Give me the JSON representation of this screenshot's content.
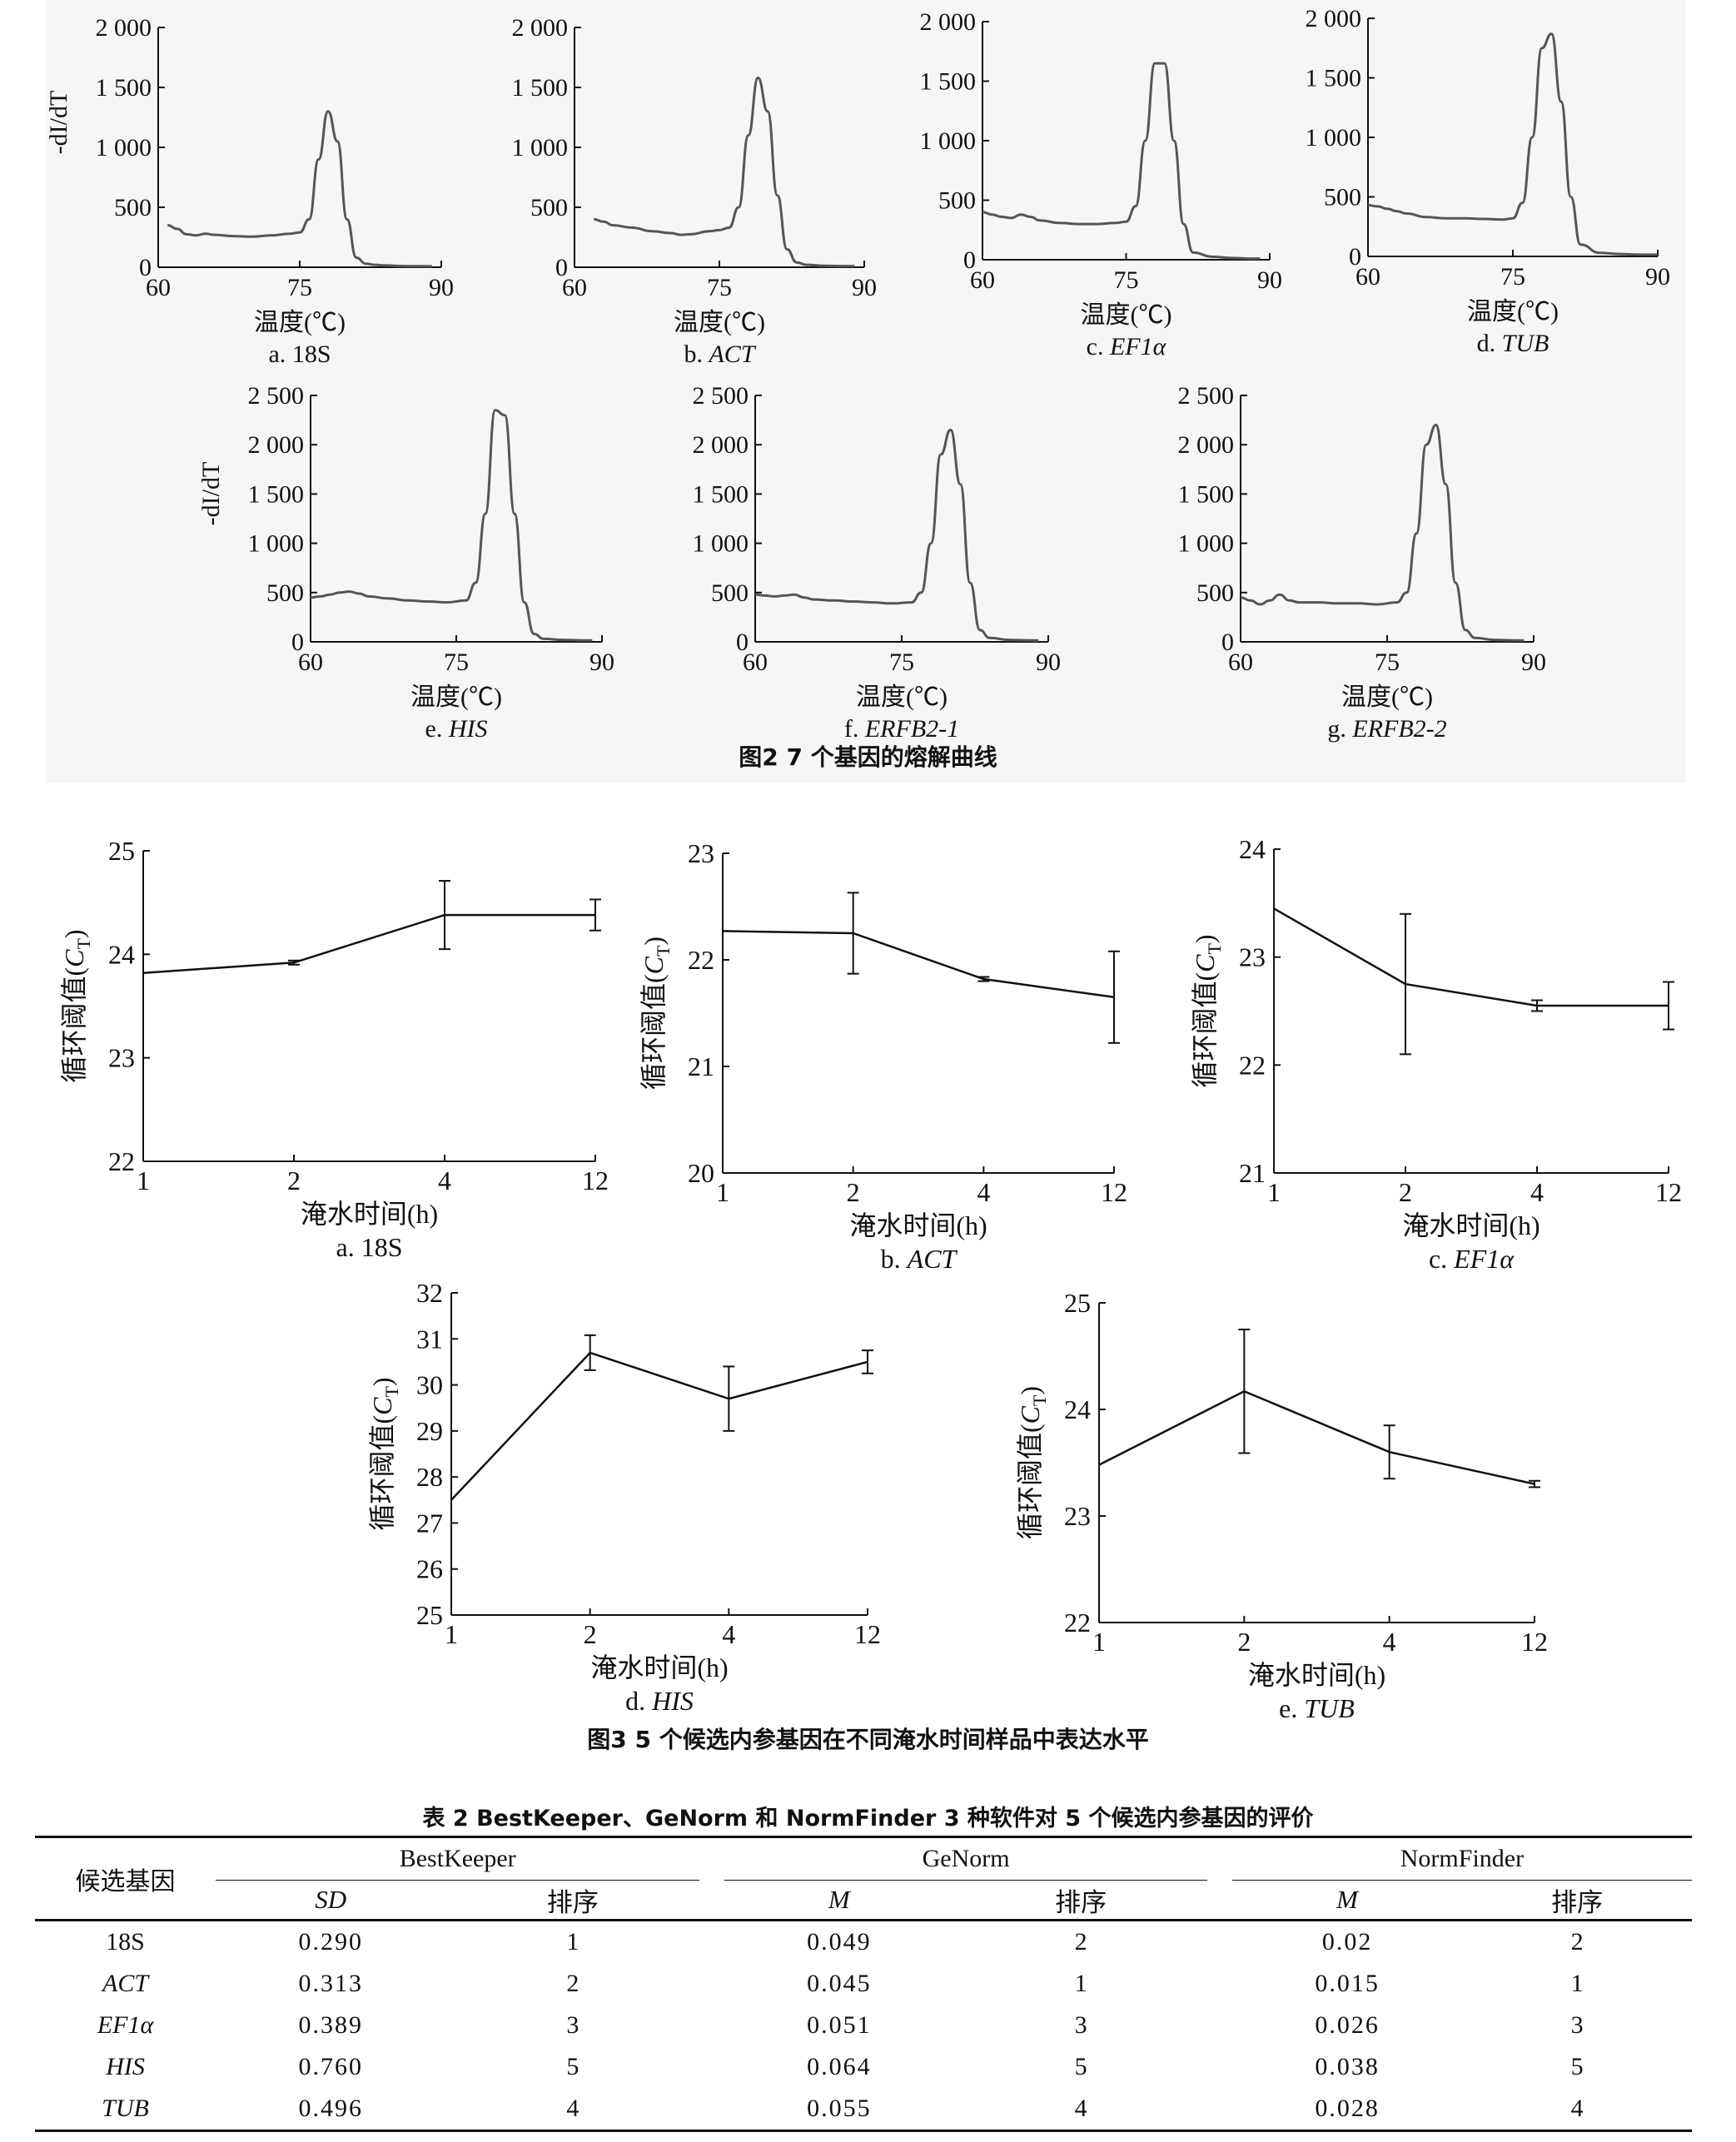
{
  "figure2": {
    "caption": "图2   7 个基因的熔解曲线",
    "ylabel": "-dI/dT",
    "xlabel": "温度(℃)"
  },
  "figure3": {
    "caption": "图3     5 个候选内参基因在不同淹水时间样品中表达水平",
    "ylabel": "循环阈值(CT)",
    "xlabel": "淹水时间(h)"
  },
  "table2": {
    "title": "表 2   BestKeeper、GeNorm 和 NormFinder 3 种软件对 5 个候选内参基因的评价",
    "col_gene": "候选基因",
    "groups": [
      "BestKeeper",
      "GeNorm",
      "NormFinder"
    ],
    "sub_sd": "SD",
    "sub_m": "M",
    "sub_rank": "排序",
    "rows": [
      {
        "gene": "18S",
        "bk_sd": "0.290",
        "bk_rank": "1",
        "gn_m": "0.049",
        "gn_rank": "2",
        "nf_m": "0.02",
        "nf_rank": "2"
      },
      {
        "gene": "ACT",
        "bk_sd": "0.313",
        "bk_rank": "2",
        "gn_m": "0.045",
        "gn_rank": "1",
        "nf_m": "0.015",
        "nf_rank": "1"
      },
      {
        "gene": "EF1α",
        "bk_sd": "0.389",
        "bk_rank": "3",
        "gn_m": "0.051",
        "gn_rank": "3",
        "nf_m": "0.026",
        "nf_rank": "3"
      },
      {
        "gene": "HIS",
        "bk_sd": "0.760",
        "bk_rank": "5",
        "gn_m": "0.064",
        "gn_rank": "5",
        "nf_m": "0.038",
        "nf_rank": "5"
      },
      {
        "gene": "TUB",
        "bk_sd": "0.496",
        "bk_rank": "4",
        "gn_m": "0.055",
        "gn_rank": "4",
        "nf_m": "0.028",
        "nf_rank": "4"
      }
    ]
  },
  "chart_data": [
    {
      "type": "line",
      "panel": "a. 18S",
      "label_prefix": "a. ",
      "label_name": "18S",
      "label_italic": false,
      "xlabel": "温度(℃)",
      "ylabel": "-dI/dT",
      "xlim": [
        60,
        90
      ],
      "ylim": [
        0,
        2000
      ],
      "xticks": [
        60,
        75,
        90
      ],
      "yticks": [
        0,
        500,
        1000,
        1500,
        2000
      ],
      "ytick_labels": [
        "0",
        "500",
        "1 000",
        "1 500",
        "2 000"
      ],
      "x": [
        61,
        62,
        63,
        64,
        65,
        66,
        68,
        70,
        72,
        74,
        75,
        76,
        77,
        78,
        79,
        80,
        81,
        82,
        83,
        84,
        86,
        88,
        89
      ],
      "values": [
        350,
        320,
        275,
        265,
        280,
        270,
        260,
        255,
        265,
        280,
        290,
        400,
        900,
        1300,
        1050,
        400,
        80,
        30,
        20,
        15,
        10,
        8,
        8
      ]
    },
    {
      "type": "line",
      "panel": "b. ACT",
      "label_prefix": "b. ",
      "label_name": "ACT",
      "label_italic": true,
      "xlabel": "温度(℃)",
      "ylabel": "",
      "xlim": [
        60,
        90
      ],
      "ylim": [
        0,
        2000
      ],
      "xticks": [
        60,
        75,
        90
      ],
      "yticks": [
        0,
        500,
        1000,
        1500,
        2000
      ],
      "ytick_labels": [
        "0",
        "500",
        "1 000",
        "1 500",
        "2 000"
      ],
      "x": [
        62,
        63,
        64,
        66,
        68,
        70,
        71,
        72,
        74,
        75,
        76,
        77,
        78,
        79,
        80,
        81,
        82,
        83,
        84,
        86,
        88,
        89
      ],
      "values": [
        400,
        380,
        350,
        330,
        300,
        285,
        270,
        275,
        300,
        310,
        330,
        500,
        1100,
        1580,
        1300,
        600,
        150,
        40,
        20,
        12,
        10,
        10
      ]
    },
    {
      "type": "line",
      "panel": "c. EF1α",
      "label_prefix": "c. ",
      "label_name": "EF1α",
      "label_italic": true,
      "xlabel": "温度(℃)",
      "ylabel": "",
      "xlim": [
        60,
        90
      ],
      "ylim": [
        0,
        2000
      ],
      "xticks": [
        60,
        75,
        90
      ],
      "yticks": [
        0,
        500,
        1000,
        1500,
        2000
      ],
      "ytick_labels": [
        "0",
        "500",
        "1 000",
        "1 500",
        "2 000"
      ],
      "x": [
        60,
        61,
        62,
        63,
        64,
        65,
        66,
        68,
        70,
        72,
        74,
        75,
        76,
        77,
        78,
        79,
        80,
        81,
        82,
        84,
        86,
        88,
        89
      ],
      "values": [
        400,
        380,
        360,
        350,
        380,
        360,
        330,
        310,
        300,
        300,
        310,
        320,
        450,
        1000,
        1650,
        1650,
        1000,
        300,
        60,
        25,
        15,
        10,
        10
      ]
    },
    {
      "type": "line",
      "panel": "d. TUB",
      "label_prefix": "d. ",
      "label_name": "TUB",
      "label_italic": true,
      "xlabel": "温度(℃)",
      "ylabel": "",
      "xlim": [
        60,
        90
      ],
      "ylim": [
        0,
        2000
      ],
      "xticks": [
        60,
        75,
        90
      ],
      "yticks": [
        0,
        500,
        1000,
        1500,
        2000
      ],
      "ytick_labels": [
        "0",
        "500",
        "1 000",
        "1 500",
        "2 000"
      ],
      "x": [
        60,
        61,
        62,
        63,
        64,
        66,
        68,
        70,
        72,
        74,
        75,
        76,
        77,
        78,
        79,
        80,
        81,
        82,
        84,
        86,
        88,
        90
      ],
      "values": [
        430,
        420,
        400,
        380,
        360,
        330,
        320,
        320,
        315,
        310,
        320,
        450,
        1000,
        1750,
        1870,
        1300,
        500,
        100,
        30,
        20,
        15,
        15
      ]
    },
    {
      "type": "line",
      "panel": "e. HIS",
      "label_prefix": "e. ",
      "label_name": "HIS",
      "label_italic": true,
      "xlabel": "温度(℃)",
      "ylabel": "-dI/dT",
      "xlim": [
        60,
        90
      ],
      "ylim": [
        0,
        2500
      ],
      "xticks": [
        60,
        75,
        90
      ],
      "yticks": [
        0,
        500,
        1000,
        1500,
        2000,
        2500
      ],
      "ytick_labels": [
        "0",
        "500",
        "1 000",
        "1 500",
        "2 000",
        "2 500"
      ],
      "x": [
        60,
        61,
        62,
        63,
        64,
        65,
        66,
        68,
        70,
        72,
        74,
        76,
        77,
        78,
        79,
        80,
        81,
        82,
        83,
        84,
        86,
        88,
        89
      ],
      "values": [
        450,
        460,
        480,
        500,
        510,
        490,
        460,
        440,
        420,
        410,
        400,
        420,
        600,
        1300,
        2350,
        2300,
        1300,
        400,
        80,
        30,
        20,
        15,
        15
      ]
    },
    {
      "type": "line",
      "panel": "f. ERFB2-1",
      "label_prefix": "f. ",
      "label_name": "ERFB2-1",
      "label_italic": true,
      "xlabel": "温度(℃)",
      "ylabel": "",
      "xlim": [
        60,
        90
      ],
      "ylim": [
        0,
        2500
      ],
      "xticks": [
        60,
        75,
        90
      ],
      "yticks": [
        0,
        500,
        1000,
        1500,
        2000,
        2500
      ],
      "ytick_labels": [
        "0",
        "500",
        "1 000",
        "1 500",
        "2 000",
        "2 500"
      ],
      "x": [
        60,
        61,
        62,
        63,
        64,
        65,
        66,
        68,
        70,
        72,
        74,
        76,
        77,
        78,
        79,
        80,
        81,
        82,
        83,
        84,
        86,
        88,
        89
      ],
      "values": [
        480,
        470,
        460,
        470,
        480,
        450,
        430,
        420,
        410,
        400,
        390,
        400,
        500,
        1000,
        1900,
        2150,
        1600,
        600,
        120,
        40,
        20,
        15,
        15
      ]
    },
    {
      "type": "line",
      "panel": "g. ERFB2-2",
      "label_prefix": "g. ",
      "label_name": "ERFB2-2",
      "label_italic": true,
      "xlabel": "温度(℃)",
      "ylabel": "",
      "xlim": [
        60,
        90
      ],
      "ylim": [
        0,
        2500
      ],
      "xticks": [
        60,
        75,
        90
      ],
      "yticks": [
        0,
        500,
        1000,
        1500,
        2000,
        2500
      ],
      "ytick_labels": [
        "0",
        "500",
        "1 000",
        "1 500",
        "2 000",
        "2 500"
      ],
      "x": [
        60,
        61,
        62,
        63,
        64,
        65,
        66,
        68,
        70,
        72,
        74,
        76,
        77,
        78,
        79,
        80,
        81,
        82,
        83,
        84,
        86,
        88,
        89
      ],
      "values": [
        450,
        420,
        380,
        420,
        480,
        420,
        400,
        400,
        390,
        390,
        380,
        400,
        500,
        1100,
        2000,
        2200,
        1600,
        600,
        120,
        40,
        20,
        15,
        15
      ]
    },
    {
      "type": "line",
      "panel": "a. 18S",
      "label_prefix": "a. ",
      "label_name": "18S",
      "label_italic": false,
      "xlabel": "淹水时间(h)",
      "ylabel": "循环阈值(CT)",
      "categories": [
        "1",
        "2",
        "4",
        "12"
      ],
      "ylim": [
        22,
        25
      ],
      "yticks": [
        22,
        23,
        24,
        25
      ],
      "values": [
        23.82,
        23.92,
        24.38,
        24.38
      ],
      "errors": [
        0.0,
        0.02,
        0.33,
        0.15
      ]
    },
    {
      "type": "line",
      "panel": "b. ACT",
      "label_prefix": "b. ",
      "label_name": "ACT",
      "label_italic": true,
      "xlabel": "淹水时间(h)",
      "ylabel": "循环阈值(CT)",
      "categories": [
        "1",
        "2",
        "4",
        "12"
      ],
      "ylim": [
        20,
        23
      ],
      "yticks": [
        20,
        21,
        22,
        23
      ],
      "values": [
        22.27,
        22.25,
        21.82,
        21.65
      ],
      "errors": [
        0.0,
        0.38,
        0.02,
        0.43
      ]
    },
    {
      "type": "line",
      "panel": "c. EF1α",
      "label_prefix": "c. ",
      "label_name": "EF1α",
      "label_italic": true,
      "xlabel": "淹水时间(h)",
      "ylabel": "循环阈值(CT)",
      "categories": [
        "1",
        "2",
        "4",
        "12"
      ],
      "ylim": [
        21,
        24
      ],
      "yticks": [
        21,
        22,
        23,
        24
      ],
      "values": [
        23.45,
        22.75,
        22.55,
        22.55
      ],
      "errors": [
        0.0,
        0.65,
        0.05,
        0.22
      ]
    },
    {
      "type": "line",
      "panel": "d. HIS",
      "label_prefix": "d. ",
      "label_name": "HIS",
      "label_italic": true,
      "xlabel": "淹水时间(h)",
      "ylabel": "循环阈值(CT)",
      "categories": [
        "1",
        "2",
        "4",
        "12"
      ],
      "ylim": [
        25,
        32
      ],
      "yticks": [
        25,
        26,
        27,
        28,
        29,
        30,
        31,
        32
      ],
      "values": [
        27.5,
        30.7,
        29.7,
        30.5
      ],
      "errors": [
        0.0,
        0.38,
        0.7,
        0.25
      ]
    },
    {
      "type": "line",
      "panel": "e. TUB",
      "label_prefix": "e. ",
      "label_name": "TUB",
      "label_italic": true,
      "xlabel": "淹水时间(h)",
      "ylabel": "循环阈值(CT)",
      "categories": [
        "1",
        "2",
        "4",
        "12"
      ],
      "ylim": [
        22,
        25
      ],
      "yticks": [
        22,
        23,
        24,
        25
      ],
      "values": [
        23.48,
        24.17,
        23.6,
        23.3
      ],
      "errors": [
        0.0,
        0.58,
        0.25,
        0.03
      ]
    }
  ]
}
